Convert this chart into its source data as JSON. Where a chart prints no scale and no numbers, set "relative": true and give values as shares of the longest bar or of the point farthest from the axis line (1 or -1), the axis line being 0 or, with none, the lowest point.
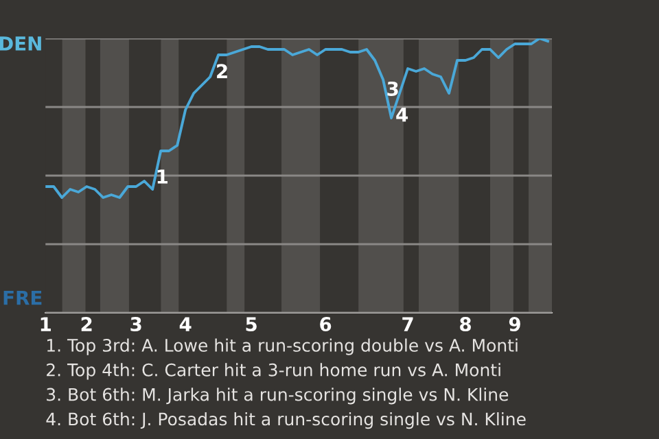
{
  "chart_data": {
    "type": "line",
    "relative": true,
    "categories": [
      "1",
      null,
      null,
      null,
      null,
      "2",
      null,
      null,
      null,
      null,
      null,
      "3",
      null,
      null,
      null,
      null,
      null,
      "4",
      null,
      null,
      null,
      null,
      null,
      null,
      null,
      "5",
      null,
      null,
      null,
      null,
      null,
      null,
      null,
      null,
      "6",
      null,
      null,
      null,
      null,
      null,
      null,
      null,
      null,
      null,
      "7",
      null,
      null,
      null,
      null,
      null,
      null,
      "8",
      null,
      null,
      null,
      null,
      null,
      "9",
      null,
      null,
      null,
      null
    ],
    "series": [
      {
        "color": "#4aa8d8",
        "values": [
          0.46,
          0.46,
          0.42,
          0.45,
          0.44,
          0.46,
          0.45,
          0.42,
          0.43,
          0.42,
          0.46,
          0.46,
          0.48,
          0.45,
          0.59,
          0.59,
          0.61,
          0.74,
          0.8,
          0.83,
          0.86,
          0.94,
          0.94,
          0.95,
          0.96,
          0.97,
          0.97,
          0.96,
          0.96,
          0.96,
          0.94,
          0.95,
          0.96,
          0.94,
          0.96,
          0.96,
          0.96,
          0.95,
          0.95,
          0.96,
          0.92,
          0.85,
          0.71,
          0.8,
          0.89,
          0.88,
          0.89,
          0.87,
          0.86,
          0.8,
          0.92,
          0.92,
          0.93,
          0.96,
          0.96,
          0.93,
          0.96,
          0.98,
          0.98,
          0.98,
          1.0,
          0.99
        ]
      }
    ],
    "grid": "y",
    "marker": "none",
    "line_style": "solid",
    "annotations": [
      "DEN",
      "FRE",
      "1",
      "2",
      "3",
      "4",
      "1. Top 3rd: A. Lowe hit a run-scoring double vs A. Monti",
      "2. Top 4th: C. Carter hit a 3-run home run vs A. Monti",
      "3. Bot 6th: M. Jarka hit a run-scoring single vs N. Kline",
      "4. Bot 6th: J. Posadas hit a run-scoring single vs N. Kline"
    ]
  }
}
